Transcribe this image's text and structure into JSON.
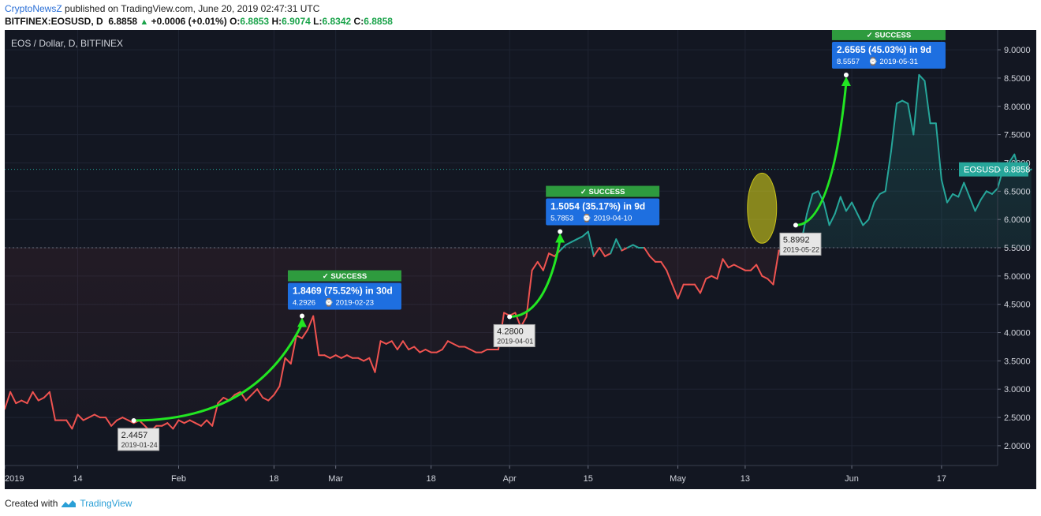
{
  "header": {
    "author": "CryptoNewsZ",
    "published": "published on TradingView.com, June 20, 2019 02:47:31 UTC",
    "symbol": "BITFINEX:EOSUSD, D",
    "price": "6.8858",
    "change": "+0.0006 (+0.01%)",
    "o_label": "O:",
    "o_value": "6.8853",
    "h_label": "H:",
    "h_value": "6.9074",
    "l_label": "L:",
    "l_value": "6.8342",
    "c_label": "C:",
    "c_value": "6.8858"
  },
  "footer": {
    "created": "Created with",
    "brand": "TradingView"
  },
  "colors": {
    "background": "#131722",
    "down": "#ef5350",
    "up": "#26a69a",
    "arrow": "#22e622",
    "success": "#2e9b3e",
    "label": "#1e6fe0"
  },
  "chart_data": {
    "type": "line",
    "title": "EOS / Dollar, D, BITFINEX",
    "symbol_label": "EOSUSD",
    "last_price": 6.8858,
    "last_price_label": "6.8858",
    "ylim": [
      1.65,
      9.35
    ],
    "yticks": [
      2.0,
      2.5,
      3.0,
      3.5,
      4.0,
      4.5,
      5.0,
      5.5,
      6.0,
      6.5,
      7.0,
      7.5,
      8.0,
      8.5,
      9.0
    ],
    "ytick_labels": [
      "2.0000",
      "2.5000",
      "3.0000",
      "3.5000",
      "4.0000",
      "4.5000",
      "5.0000",
      "5.5000",
      "6.0000",
      "6.5000",
      "7.0000",
      "7.5000",
      "8.0000",
      "8.5000",
      "9.0000"
    ],
    "baseline": 5.5,
    "x_start": "2019-01-01",
    "x_end": "2019-06-27",
    "xticks": [
      {
        "date": "2019-01-01",
        "label": "2019"
      },
      {
        "date": "2019-01-14",
        "label": "14"
      },
      {
        "date": "2019-02-01",
        "label": "Feb"
      },
      {
        "date": "2019-02-18",
        "label": "18"
      },
      {
        "date": "2019-03-01",
        "label": "Mar"
      },
      {
        "date": "2019-03-18",
        "label": "18"
      },
      {
        "date": "2019-04-01",
        "label": "Apr"
      },
      {
        "date": "2019-04-15",
        "label": "15"
      },
      {
        "date": "2019-05-01",
        "label": "May"
      },
      {
        "date": "2019-05-13",
        "label": "13"
      },
      {
        "date": "2019-06-01",
        "label": "Jun"
      },
      {
        "date": "2019-06-17",
        "label": "17"
      }
    ],
    "series": [
      {
        "start": "2019-01-01",
        "values": [
          2.65,
          2.95,
          2.75,
          2.8,
          2.75,
          2.95,
          2.8,
          2.85,
          2.95,
          2.45,
          2.45,
          2.45,
          2.3,
          2.55,
          2.45,
          2.5,
          2.55,
          2.5,
          2.5,
          2.35,
          2.45,
          2.5,
          2.45,
          2.4,
          2.4457,
          2.35,
          2.25,
          2.35,
          2.35,
          2.4,
          2.3,
          2.45,
          2.4,
          2.45,
          2.4,
          2.35,
          2.45,
          2.35,
          2.75,
          2.85,
          2.8,
          2.9,
          2.95,
          2.8,
          2.9,
          3.0,
          2.85,
          2.8,
          2.9,
          3.05,
          3.55,
          3.45,
          3.95,
          3.9,
          4.05,
          4.2926,
          3.6,
          3.6,
          3.55,
          3.6,
          3.55,
          3.6,
          3.55,
          3.55,
          3.5,
          3.55,
          3.3,
          3.85,
          3.8,
          3.85,
          3.7,
          3.85,
          3.7,
          3.75,
          3.65,
          3.7,
          3.65,
          3.65,
          3.7,
          3.85,
          3.8,
          3.75,
          3.75,
          3.7,
          3.65,
          3.65,
          3.7,
          3.7,
          3.7,
          4.35,
          4.3,
          4.35,
          4.1,
          4.28,
          5.1,
          5.25,
          5.1,
          5.4,
          5.35,
          5.45,
          5.55,
          5.6,
          5.65,
          5.7,
          5.7853,
          5.35,
          5.5,
          5.35,
          5.4,
          5.65,
          5.45,
          5.5,
          5.55,
          5.5,
          5.5,
          5.35,
          5.25,
          5.25,
          5.1,
          4.85,
          4.6,
          4.85,
          4.85,
          4.85,
          4.7,
          4.95,
          5.0,
          4.95,
          5.3,
          5.15,
          5.2,
          5.15,
          5.1,
          5.1,
          5.2,
          5.0,
          4.95,
          4.85,
          5.45,
          5.4,
          5.45,
          5.55,
          5.6,
          6.1,
          6.45,
          6.5,
          6.3,
          5.9,
          6.1,
          6.4,
          6.15,
          6.3,
          6.1,
          5.8992,
          6.0,
          6.3,
          6.45,
          6.5,
          7.2,
          8.05,
          8.1,
          8.05,
          7.5,
          8.5557,
          8.45,
          7.7,
          7.7,
          6.7,
          6.3,
          6.45,
          6.4,
          6.65,
          6.4,
          6.15,
          6.35,
          6.5,
          6.45,
          6.55,
          6.9,
          7.0,
          7.15,
          6.8,
          6.85,
          6.8858
        ]
      }
    ],
    "annotations": [
      {
        "from_date": "2019-01-24",
        "from_value": 2.4457,
        "to_date": "2019-02-23",
        "to_value": 4.2926,
        "from_price": "2.4457",
        "from_date_label": "2019-01-24",
        "badge": "SUCCESS",
        "change": "1.8469 (75.52%) in 30d",
        "target": "4.2926",
        "target_date": "2019-02-23"
      },
      {
        "from_date": "2019-04-01",
        "from_value": 4.28,
        "to_date": "2019-04-10",
        "to_value": 5.7853,
        "from_price": "4.2800",
        "from_date_label": "2019-04-01",
        "badge": "SUCCESS",
        "change": "1.5054 (35.17%) in 9d",
        "target": "5.7853",
        "target_date": "2019-04-10"
      },
      {
        "from_date": "2019-05-22",
        "from_value": 5.8992,
        "to_date": "2019-05-31",
        "to_value": 8.5557,
        "from_price": "5.8992",
        "from_date_label": "2019-05-22",
        "badge": "SUCCESS",
        "change": "2.6565 (45.03%) in 9d",
        "target": "8.5557",
        "target_date": "2019-05-31"
      }
    ],
    "highlight": {
      "center_date": "2019-05-16",
      "center_value": 6.2,
      "half_width_days": 2.6,
      "half_height_value": 0.62
    }
  }
}
